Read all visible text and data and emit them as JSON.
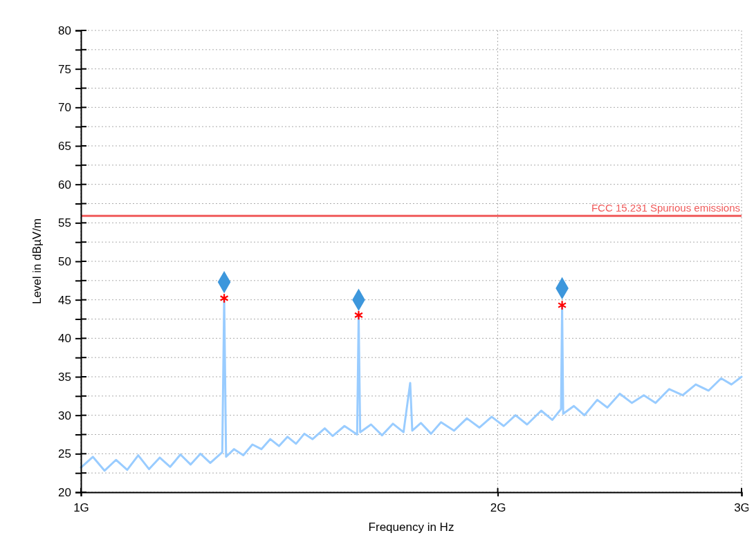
{
  "chart_data": {
    "type": "line",
    "xlabel": "Frequency in Hz",
    "ylabel": "Level in dBµV/m",
    "log": "x",
    "xlim": [
      1,
      3
    ],
    "xticks": [
      {
        "value": 1,
        "label": "1G"
      },
      {
        "value": 2,
        "label": "2G"
      },
      {
        "value": 3,
        "label": "3G"
      }
    ],
    "ylim": [
      20,
      80
    ],
    "yticks": [
      20,
      {
        "value": 22.5,
        "label": null
      },
      25,
      {
        "value": 27.5,
        "label": null
      },
      30,
      {
        "value": 32.5,
        "label": null
      },
      35,
      {
        "value": 37.5,
        "label": null
      },
      40,
      {
        "value": 42.5,
        "label": null
      },
      45,
      {
        "value": 47.5,
        "label": null
      },
      50,
      {
        "value": 52.5,
        "label": null
      },
      55,
      {
        "value": 57.5,
        "label": null
      },
      60,
      {
        "value": 62.5,
        "label": null
      },
      65,
      {
        "value": 67.5,
        "label": null
      },
      70,
      {
        "value": 72.5,
        "label": null
      },
      75,
      {
        "value": 77.5,
        "label": null
      },
      80
    ],
    "grid": true,
    "ref_lines": [
      {
        "axis": "y",
        "value": 55.9,
        "label": "FCC 15.231 Spurious emissions",
        "color": "#f05a5a"
      }
    ],
    "series": [
      {
        "color": "#99ccff",
        "marker": "none",
        "x": [
          1.0,
          1.02,
          1.04,
          1.06,
          1.08,
          1.1,
          1.12,
          1.14,
          1.16,
          1.18,
          1.2,
          1.22,
          1.24,
          1.265,
          1.269,
          1.273,
          1.29,
          1.31,
          1.33,
          1.35,
          1.37,
          1.39,
          1.41,
          1.43,
          1.45,
          1.47,
          1.5,
          1.52,
          1.55,
          1.583,
          1.587,
          1.591,
          1.62,
          1.65,
          1.68,
          1.71,
          1.729,
          1.735,
          1.76,
          1.79,
          1.82,
          1.86,
          1.9,
          1.94,
          1.98,
          2.02,
          2.06,
          2.1,
          2.15,
          2.19,
          2.222,
          2.226,
          2.23,
          2.27,
          2.31,
          2.36,
          2.4,
          2.45,
          2.5,
          2.55,
          2.6,
          2.66,
          2.72,
          2.78,
          2.84,
          2.9,
          2.95,
          3.0
        ],
        "values": [
          23.2,
          24.6,
          22.8,
          24.2,
          22.9,
          24.8,
          23.0,
          24.5,
          23.3,
          24.9,
          23.6,
          25.0,
          23.8,
          25.2,
          45.2,
          24.6,
          25.6,
          24.8,
          26.2,
          25.6,
          26.9,
          26.0,
          27.2,
          26.3,
          27.6,
          26.9,
          28.3,
          27.3,
          28.6,
          27.5,
          43.0,
          27.8,
          28.8,
          27.4,
          28.9,
          27.8,
          34.2,
          28.0,
          29.0,
          27.6,
          29.1,
          28.0,
          29.6,
          28.4,
          29.8,
          28.6,
          30.0,
          28.8,
          30.6,
          29.4,
          30.8,
          44.3,
          30.2,
          31.2,
          30.0,
          32.0,
          31.0,
          32.8,
          31.6,
          32.6,
          31.6,
          33.4,
          32.6,
          34.0,
          33.2,
          34.8,
          34.0,
          35.0
        ]
      },
      {
        "type": "scatter",
        "color": "#3d97dc",
        "marker": "diamond",
        "x": [
          1.269,
          1.587,
          2.226
        ],
        "values": [
          47.3,
          45.0,
          46.5
        ]
      },
      {
        "type": "scatter",
        "color": "#ff0000",
        "marker": "cross",
        "x": [
          1.269,
          1.587,
          2.226
        ],
        "values": [
          45.2,
          43.0,
          44.3
        ]
      }
    ]
  }
}
